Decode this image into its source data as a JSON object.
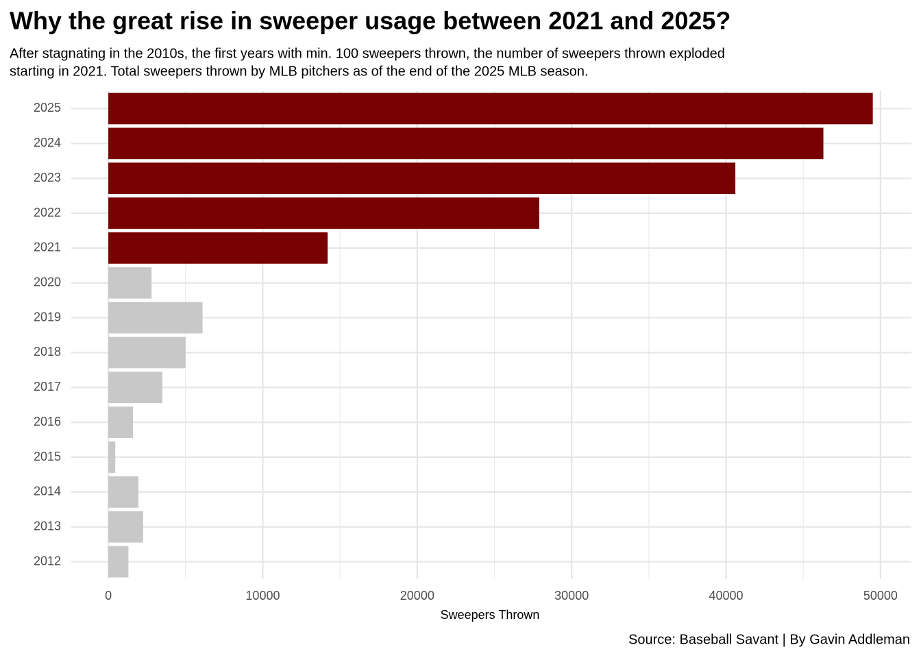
{
  "chart_data": {
    "type": "barh",
    "title": "Why the great rise in sweeper usage between 2021 and 2025?",
    "subtitle": [
      "After stagnating in the 2010s, the first years with min. 100 sweepers thrown, the number of sweepers thrown exploded",
      "starting in 2021. Total sweepers thrown by MLB pitchers as of the end of the 2025 MLB season."
    ],
    "x_label": "Sweepers Thrown",
    "caption": "Source: Baseball Savant | By Gavin Addleman",
    "categories": [
      "2012",
      "2013",
      "2014",
      "2015",
      "2016",
      "2017",
      "2018",
      "2019",
      "2020",
      "2021",
      "2022",
      "2023",
      "2024",
      "2025"
    ],
    "values": [
      1300,
      2250,
      1950,
      450,
      1600,
      3500,
      5000,
      6100,
      2800,
      14200,
      27900,
      40600,
      46300,
      49500
    ],
    "colors": [
      "#c8c8c8",
      "#c8c8c8",
      "#c8c8c8",
      "#c8c8c8",
      "#c8c8c8",
      "#c8c8c8",
      "#c8c8c8",
      "#c8c8c8",
      "#c8c8c8",
      "#780000",
      "#780000",
      "#780000",
      "#780000",
      "#780000"
    ],
    "xlim": [
      -2400,
      52000
    ],
    "xticks": [
      0,
      10000,
      20000,
      30000,
      40000,
      50000
    ],
    "x_minor_grid": [
      5000,
      15000,
      25000,
      35000,
      45000
    ],
    "grid": true
  }
}
